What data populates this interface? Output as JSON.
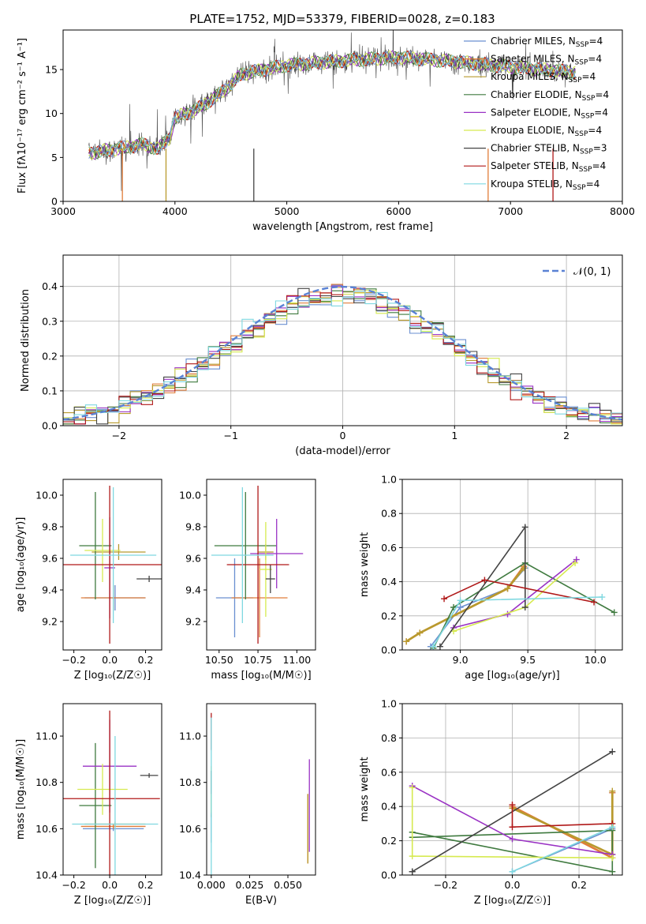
{
  "title": "PLATE=1752, MJD=53379, FIBERID=0028, z=0.183",
  "series": [
    {
      "name": "Chabrier MILES",
      "nssp": "4",
      "color": "#6a8fd0"
    },
    {
      "name": "Salpeter MILES",
      "nssp": "4",
      "color": "#e07d3a"
    },
    {
      "name": "Kroupa MILES",
      "nssp": "4",
      "color": "#b89a2e"
    },
    {
      "name": "Chabrier ELODIE",
      "nssp": "4",
      "color": "#3f7a3f"
    },
    {
      "name": "Salpeter ELODIE",
      "nssp": "4",
      "color": "#9a32c4"
    },
    {
      "name": "Kroupa ELODIE",
      "nssp": "4",
      "color": "#d6ea50"
    },
    {
      "name": "Chabrier STELIB",
      "nssp": "3",
      "color": "#444444"
    },
    {
      "name": "Salpeter STELIB",
      "nssp": "4",
      "color": "#b01818"
    },
    {
      "name": "Kroupa STELIB",
      "nssp": "4",
      "color": "#7fd8e0"
    }
  ],
  "chart_data": [
    {
      "id": "spectrum",
      "type": "line",
      "xlabel": "wavelength [Angstrom, rest frame]",
      "ylabel": "Flux [fλ10⁻¹⁷ erg cm⁻² s⁻¹ A⁻¹]",
      "xlim": [
        3000,
        8000
      ],
      "ylim": [
        0,
        19.5
      ],
      "xticks": [
        3000,
        4000,
        5000,
        6000,
        7000,
        8000
      ],
      "yticks": [
        0,
        5,
        10,
        15
      ],
      "legend": "top-right",
      "data_range": [
        3230,
        7580
      ],
      "profile": [
        [
          3230,
          5.5
        ],
        [
          3500,
          6.0
        ],
        [
          3700,
          6.5
        ],
        [
          3850,
          6.0
        ],
        [
          3950,
          7.2
        ],
        [
          4000,
          9.5
        ],
        [
          4200,
          10.5
        ],
        [
          4400,
          12.2
        ],
        [
          4600,
          14.5
        ],
        [
          5000,
          15.5
        ],
        [
          5500,
          16.0
        ],
        [
          6000,
          16.4
        ],
        [
          6500,
          15.9
        ],
        [
          7000,
          15.3
        ],
        [
          7580,
          14.7
        ]
      ]
    },
    {
      "id": "residuals",
      "type": "histogram",
      "xlabel": "(data-model)/error",
      "ylabel": "Normed distribution",
      "xlim": [
        -2.5,
        2.5
      ],
      "ylim": [
        0,
        0.49
      ],
      "xticks": [
        -2,
        -1,
        0,
        1,
        2
      ],
      "yticks": [
        0.0,
        0.1,
        0.2,
        0.3,
        0.4
      ],
      "normal_label": "𝒩(0, 1)",
      "bin_width": 0.1,
      "grid": true
    },
    {
      "id": "age-vs-Z",
      "type": "errorbar",
      "xlabel": "Z [log₁₀(Z/Z☉)]",
      "ylabel": "age  [log₁₀(age/yr)]",
      "xlim": [
        -0.26,
        0.29
      ],
      "ylim": [
        9.02,
        10.1
      ],
      "xticks": [
        -0.2,
        0.0,
        0.2
      ],
      "yticks": [
        9.2,
        9.4,
        9.6,
        9.8,
        10.0
      ],
      "points": [
        {
          "x": 0.03,
          "xe": 0.17,
          "y": 9.35,
          "ye": 0.08
        },
        {
          "x": 0.02,
          "xe": 0.18,
          "y": 9.35,
          "ye": 0.08
        },
        {
          "x": 0.05,
          "xe": 0.15,
          "y": 9.64,
          "ye": 0.05
        },
        {
          "x": -0.08,
          "xe": 0.09,
          "y": 9.68,
          "ye": 0.34
        },
        {
          "x": 0.0,
          "xe": 0.03,
          "y": 9.54,
          "ye": 0.32
        },
        {
          "x": -0.04,
          "xe": 0.1,
          "y": 9.65,
          "ye": 0.2
        },
        {
          "x": 0.22,
          "xe": 0.07,
          "y": 9.47,
          "ye": 0.02
        },
        {
          "x": 0.0,
          "xe": 0.29,
          "y": 9.56,
          "ye": 0.5
        },
        {
          "x": 0.02,
          "xe": 0.24,
          "y": 9.62,
          "ye": 0.43
        }
      ]
    },
    {
      "id": "age-vs-mass",
      "type": "errorbar",
      "xlabel": "mass [log₁₀(M/M☉)]",
      "ylabel": "",
      "xlim": [
        10.42,
        11.12
      ],
      "ylim": [
        9.02,
        10.1
      ],
      "xticks": [
        10.5,
        10.75,
        11.0
      ],
      "xtick_labels": [
        "10.50",
        "10.75",
        "11.00"
      ],
      "yticks": [
        9.2,
        9.4,
        9.6,
        9.8,
        10.0
      ],
      "points": [
        {
          "x": 10.6,
          "xe": 0.12,
          "y": 9.35,
          "ye": 0.25
        },
        {
          "x": 10.76,
          "xe": 0.18,
          "y": 9.35,
          "ye": 0.25
        },
        {
          "x": 10.8,
          "xe": 0.05,
          "y": 9.64,
          "ye": 0.05
        },
        {
          "x": 10.67,
          "xe": 0.2,
          "y": 9.68,
          "ye": 0.34
        },
        {
          "x": 10.87,
          "xe": 0.17,
          "y": 9.63,
          "ye": 0.22
        },
        {
          "x": 10.8,
          "xe": 0.04,
          "y": 9.53,
          "ye": 0.3
        },
        {
          "x": 10.83,
          "xe": 0.03,
          "y": 9.47,
          "ye": 0.09
        },
        {
          "x": 10.75,
          "xe": 0.2,
          "y": 9.56,
          "ye": 0.5
        },
        {
          "x": 10.65,
          "xe": 0.2,
          "y": 9.62,
          "ye": 0.43
        }
      ]
    },
    {
      "id": "weight-vs-age",
      "type": "line",
      "xlabel": "age  [log₁₀(age/yr)]",
      "ylabel": "mass weight",
      "xlim": [
        8.57,
        10.2
      ],
      "ylim": [
        0,
        1
      ],
      "xticks": [
        9.0,
        9.5,
        10.0
      ],
      "yticks": [
        0.0,
        0.2,
        0.4,
        0.6,
        0.8,
        1.0
      ],
      "series": [
        {
          "x": [
            8.78,
            9.0,
            9.35,
            9.48
          ],
          "y": [
            0.02,
            0.25,
            0.36,
            0.48
          ]
        },
        {
          "x": [
            8.6,
            8.7,
            9.35,
            9.47
          ],
          "y": [
            0.05,
            0.1,
            0.36,
            0.49
          ]
        },
        {
          "x": [
            8.6,
            8.7,
            9.35,
            9.47
          ],
          "y": [
            0.05,
            0.1,
            0.36,
            0.48
          ]
        },
        {
          "x": [
            8.8,
            8.95,
            9.48,
            10.14
          ],
          "y": [
            0.01,
            0.25,
            0.51,
            0.22
          ]
        },
        {
          "x": [
            8.95,
            9.35,
            9.86
          ],
          "y": [
            0.13,
            0.21,
            0.53
          ]
        },
        {
          "x": [
            8.95,
            9.48,
            9.85
          ],
          "y": [
            0.11,
            0.25,
            0.51
          ]
        },
        {
          "x": [
            8.85,
            9.48,
            9.48
          ],
          "y": [
            0.02,
            0.72,
            0.25
          ]
        },
        {
          "x": [
            8.88,
            9.18,
            9.99
          ],
          "y": [
            0.3,
            0.41,
            0.28
          ]
        },
        {
          "x": [
            8.8,
            9.0,
            10.05
          ],
          "y": [
            0.02,
            0.29,
            0.31
          ]
        }
      ]
    },
    {
      "id": "mass-vs-Z",
      "type": "errorbar",
      "xlabel": "Z [log₁₀(Z/Z☉)]",
      "ylabel": "mass [log₁₀(M/M☉)]",
      "xlim": [
        -0.26,
        0.29
      ],
      "ylim": [
        10.4,
        11.14
      ],
      "xticks": [
        -0.2,
        0.0,
        0.2
      ],
      "yticks": [
        10.4,
        10.6,
        10.8,
        11.0
      ],
      "points": [
        {
          "x": 0.02,
          "xe": 0.17,
          "y": 10.6,
          "ye": 0.01
        },
        {
          "x": 0.02,
          "xe": 0.18,
          "y": 10.61,
          "ye": 0.01
        },
        {
          "x": 0.03,
          "xe": 0.17,
          "y": 10.62,
          "ye": 0.01
        },
        {
          "x": -0.08,
          "xe": 0.09,
          "y": 10.7,
          "ye": 0.27
        },
        {
          "x": 0.0,
          "xe": 0.15,
          "y": 10.87,
          "ye": 0.2
        },
        {
          "x": -0.04,
          "xe": 0.14,
          "y": 10.77,
          "ye": 0.11
        },
        {
          "x": 0.22,
          "xe": 0.05,
          "y": 10.83,
          "ye": 0.01
        },
        {
          "x": 0.0,
          "xe": 0.28,
          "y": 10.73,
          "ye": 0.38
        },
        {
          "x": 0.03,
          "xe": 0.24,
          "y": 10.62,
          "ye": 0.38
        }
      ]
    },
    {
      "id": "mass-vs-ebv",
      "type": "errorbar",
      "xlabel": "E(B-V)",
      "ylabel": "",
      "xlim": [
        -0.003,
        0.068
      ],
      "ylim": [
        10.4,
        11.14
      ],
      "xticks": [
        0.0,
        0.025,
        0.05
      ],
      "xtick_labels": [
        "0.000",
        "0.025",
        "0.050"
      ],
      "yticks": [
        10.4,
        10.6,
        10.8,
        11.0
      ],
      "points": [
        {
          "x": 0.0,
          "xe": 0,
          "y": 10.6,
          "ye": 0.06
        },
        {
          "x": 0.063,
          "xe": 0,
          "y": 10.6,
          "ye": 0.15
        },
        {
          "x": 0.063,
          "xe": 0,
          "y": 10.6,
          "ye": 0.15
        },
        {
          "x": 0.0,
          "xe": 0,
          "y": 10.7,
          "ye": 0.05
        },
        {
          "x": 0.064,
          "xe": 0,
          "y": 10.7,
          "ye": 0.2
        },
        {
          "x": 0.0,
          "xe": 0,
          "y": 10.77,
          "ye": 0.1
        },
        {
          "x": 0.0,
          "xe": 0,
          "y": 10.8,
          "ye": 0.05
        },
        {
          "x": 0.0,
          "xe": 0,
          "y": 11.02,
          "ye": 0.08
        },
        {
          "x": 0.0,
          "xe": 0,
          "y": 10.7,
          "ye": 0.38
        }
      ]
    },
    {
      "id": "weight-vs-Z",
      "type": "line",
      "xlabel": "Z [log₁₀(Z/Z☉)]",
      "ylabel": "mass weight",
      "xlim": [
        -0.33,
        0.33
      ],
      "ylim": [
        0,
        1
      ],
      "xticks": [
        -0.2,
        0.0,
        0.2
      ],
      "yticks": [
        0.0,
        0.2,
        0.4,
        0.6,
        0.8,
        1.0
      ],
      "series": [
        {
          "x": [
            0.0,
            0.3,
            0.3
          ],
          "y": [
            0.02,
            0.27,
            0.48
          ]
        },
        {
          "x": [
            0.0,
            0.3,
            0.3
          ],
          "y": [
            0.4,
            0.1,
            0.48
          ]
        },
        {
          "x": [
            0.0,
            0.3,
            0.3
          ],
          "y": [
            0.39,
            0.12,
            0.49
          ]
        },
        {
          "x": [
            -0.3,
            0.3,
            0.3,
            -0.3
          ],
          "y": [
            0.22,
            0.26,
            0.02,
            0.25
          ]
        },
        {
          "x": [
            -0.3,
            0.0,
            0.3
          ],
          "y": [
            0.52,
            0.21,
            0.12
          ]
        },
        {
          "x": [
            -0.3,
            -0.3,
            0.3
          ],
          "y": [
            0.51,
            0.11,
            0.1
          ]
        },
        {
          "x": [
            -0.3,
            0.3,
            -0.3
          ],
          "y": [
            0.02,
            0.72,
            0.02
          ]
        },
        {
          "x": [
            0.0,
            0.0,
            0.3
          ],
          "y": [
            0.41,
            0.28,
            0.3
          ]
        },
        {
          "x": [
            0.0,
            0.3
          ],
          "y": [
            0.02,
            0.28
          ]
        }
      ]
    }
  ]
}
